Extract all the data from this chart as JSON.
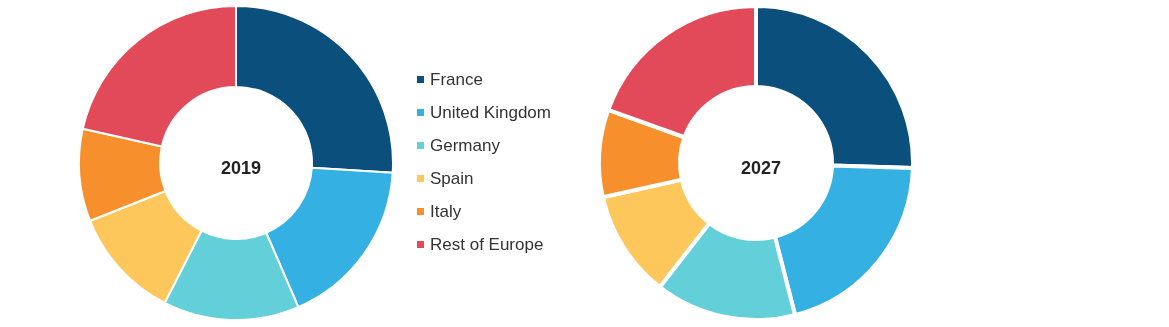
{
  "chart_data": {
    "type": "donut",
    "categories": [
      "France",
      "United Kingdom",
      "Germany",
      "Spain",
      "Italy",
      "Rest of Europe"
    ],
    "colors": [
      "#0b4f7c",
      "#35b0e3",
      "#62cfd9",
      "#fec75c",
      "#f78f2d",
      "#e34a59"
    ],
    "legend": "right",
    "series": [
      {
        "name": "2019",
        "values": [
          26,
          17.5,
          14,
          11.5,
          9.5,
          21.5
        ]
      },
      {
        "name": "2027",
        "values": [
          25.5,
          20.5,
          14.5,
          11,
          9,
          19.5
        ]
      }
    ]
  }
}
